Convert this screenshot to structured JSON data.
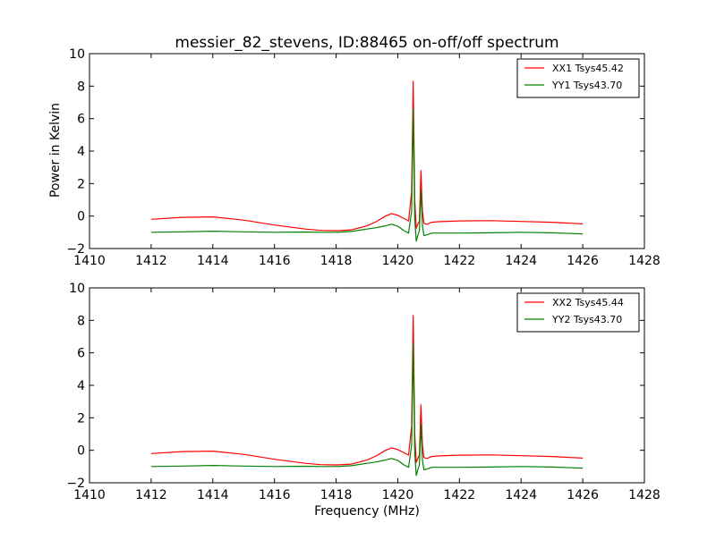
{
  "figure": {
    "title": "messier_82_stevens, ID:88465 on-off/off spectrum",
    "xlabel": "Frequency (MHz)",
    "ylabel": "Power in Kelvin"
  },
  "colors": {
    "xx": "#ff0000",
    "yy": "#008000",
    "axes": "#000000"
  },
  "chart_data": [
    {
      "type": "line",
      "title": "messier_82_stevens, ID:88465 on-off/off spectrum",
      "xlabel": "",
      "ylabel": "Power in Kelvin",
      "xlim": [
        1410,
        1428
      ],
      "ylim": [
        -2,
        10
      ],
      "xticks": [
        "1410",
        "1412",
        "1414",
        "1416",
        "1418",
        "1420",
        "1422",
        "1424",
        "1426",
        "1428"
      ],
      "yticks": [
        "−2",
        "0",
        "2",
        "4",
        "6",
        "8",
        "10"
      ],
      "grid": false,
      "legend_position": "top-right",
      "series": [
        {
          "name": "XX1 Tsys45.42",
          "color": "#ff0000",
          "x": [
            1412.0,
            1413.0,
            1414.0,
            1415.0,
            1416.0,
            1417.0,
            1417.5,
            1418.0,
            1418.5,
            1419.0,
            1419.3,
            1419.6,
            1419.8,
            1420.0,
            1420.2,
            1420.35,
            1420.45,
            1420.5,
            1420.55,
            1420.6,
            1420.65,
            1420.7,
            1420.75,
            1420.8,
            1420.85,
            1420.95,
            1421.1,
            1421.3,
            1422.0,
            1423.0,
            1424.0,
            1425.0,
            1426.0
          ],
          "y": [
            -0.2,
            -0.08,
            -0.05,
            -0.25,
            -0.55,
            -0.8,
            -0.88,
            -0.9,
            -0.85,
            -0.6,
            -0.35,
            0.0,
            0.15,
            0.05,
            -0.15,
            -0.3,
            1.5,
            8.3,
            1.0,
            -0.75,
            -0.5,
            -0.3,
            2.8,
            0.3,
            -0.45,
            -0.5,
            -0.38,
            -0.35,
            -0.3,
            -0.28,
            -0.33,
            -0.38,
            -0.48
          ]
        },
        {
          "name": "YY1 Tsys43.70",
          "color": "#008000",
          "x": [
            1412.0,
            1413.0,
            1414.0,
            1415.0,
            1416.0,
            1417.0,
            1417.5,
            1418.0,
            1418.5,
            1419.0,
            1419.3,
            1419.6,
            1419.8,
            1420.0,
            1420.2,
            1420.35,
            1420.45,
            1420.5,
            1420.55,
            1420.6,
            1420.65,
            1420.7,
            1420.75,
            1420.8,
            1420.85,
            1420.95,
            1421.1,
            1421.3,
            1422.0,
            1423.0,
            1424.0,
            1425.0,
            1426.0
          ],
          "y": [
            -1.0,
            -0.97,
            -0.93,
            -0.97,
            -1.0,
            -0.98,
            -1.0,
            -1.0,
            -0.95,
            -0.8,
            -0.72,
            -0.6,
            -0.5,
            -0.62,
            -0.9,
            -1.05,
            0.3,
            6.6,
            -0.2,
            -1.55,
            -1.2,
            -0.9,
            1.6,
            -0.6,
            -1.2,
            -1.15,
            -1.05,
            -1.05,
            -1.05,
            -1.03,
            -1.0,
            -1.03,
            -1.1
          ]
        }
      ]
    },
    {
      "type": "line",
      "title": "",
      "xlabel": "Frequency (MHz)",
      "ylabel": "",
      "xlim": [
        1410,
        1428
      ],
      "ylim": [
        -2,
        10
      ],
      "xticks": [
        "1410",
        "1412",
        "1414",
        "1416",
        "1418",
        "1420",
        "1422",
        "1424",
        "1426",
        "1428"
      ],
      "yticks": [
        "−2",
        "0",
        "2",
        "4",
        "6",
        "8",
        "10"
      ],
      "grid": false,
      "legend_position": "top-right",
      "series": [
        {
          "name": "XX2 Tsys45.44",
          "color": "#ff0000",
          "x": [
            1412.0,
            1413.0,
            1414.0,
            1415.0,
            1416.0,
            1417.0,
            1417.5,
            1418.0,
            1418.5,
            1419.0,
            1419.3,
            1419.6,
            1419.8,
            1420.0,
            1420.2,
            1420.35,
            1420.45,
            1420.5,
            1420.55,
            1420.6,
            1420.65,
            1420.7,
            1420.75,
            1420.8,
            1420.85,
            1420.95,
            1421.1,
            1421.3,
            1422.0,
            1423.0,
            1424.0,
            1425.0,
            1426.0
          ],
          "y": [
            -0.2,
            -0.08,
            -0.05,
            -0.25,
            -0.55,
            -0.8,
            -0.88,
            -0.9,
            -0.85,
            -0.6,
            -0.35,
            0.0,
            0.15,
            0.05,
            -0.15,
            -0.3,
            1.5,
            8.3,
            1.0,
            -0.75,
            -0.5,
            -0.3,
            2.8,
            0.3,
            -0.45,
            -0.5,
            -0.38,
            -0.35,
            -0.3,
            -0.28,
            -0.33,
            -0.38,
            -0.48
          ]
        },
        {
          "name": "YY2 Tsys43.70",
          "color": "#008000",
          "x": [
            1412.0,
            1413.0,
            1414.0,
            1415.0,
            1416.0,
            1417.0,
            1417.5,
            1418.0,
            1418.5,
            1419.0,
            1419.3,
            1419.6,
            1419.8,
            1420.0,
            1420.2,
            1420.35,
            1420.45,
            1420.5,
            1420.55,
            1420.6,
            1420.65,
            1420.7,
            1420.75,
            1420.8,
            1420.85,
            1420.95,
            1421.1,
            1421.3,
            1422.0,
            1423.0,
            1424.0,
            1425.0,
            1426.0
          ],
          "y": [
            -1.0,
            -0.97,
            -0.93,
            -0.97,
            -1.0,
            -0.98,
            -1.0,
            -1.0,
            -0.95,
            -0.8,
            -0.72,
            -0.6,
            -0.5,
            -0.62,
            -0.9,
            -1.05,
            0.3,
            6.6,
            -0.2,
            -1.55,
            -1.2,
            -0.9,
            1.6,
            -0.6,
            -1.2,
            -1.15,
            -1.05,
            -1.05,
            -1.05,
            -1.03,
            -1.0,
            -1.03,
            -1.1
          ]
        }
      ]
    }
  ]
}
